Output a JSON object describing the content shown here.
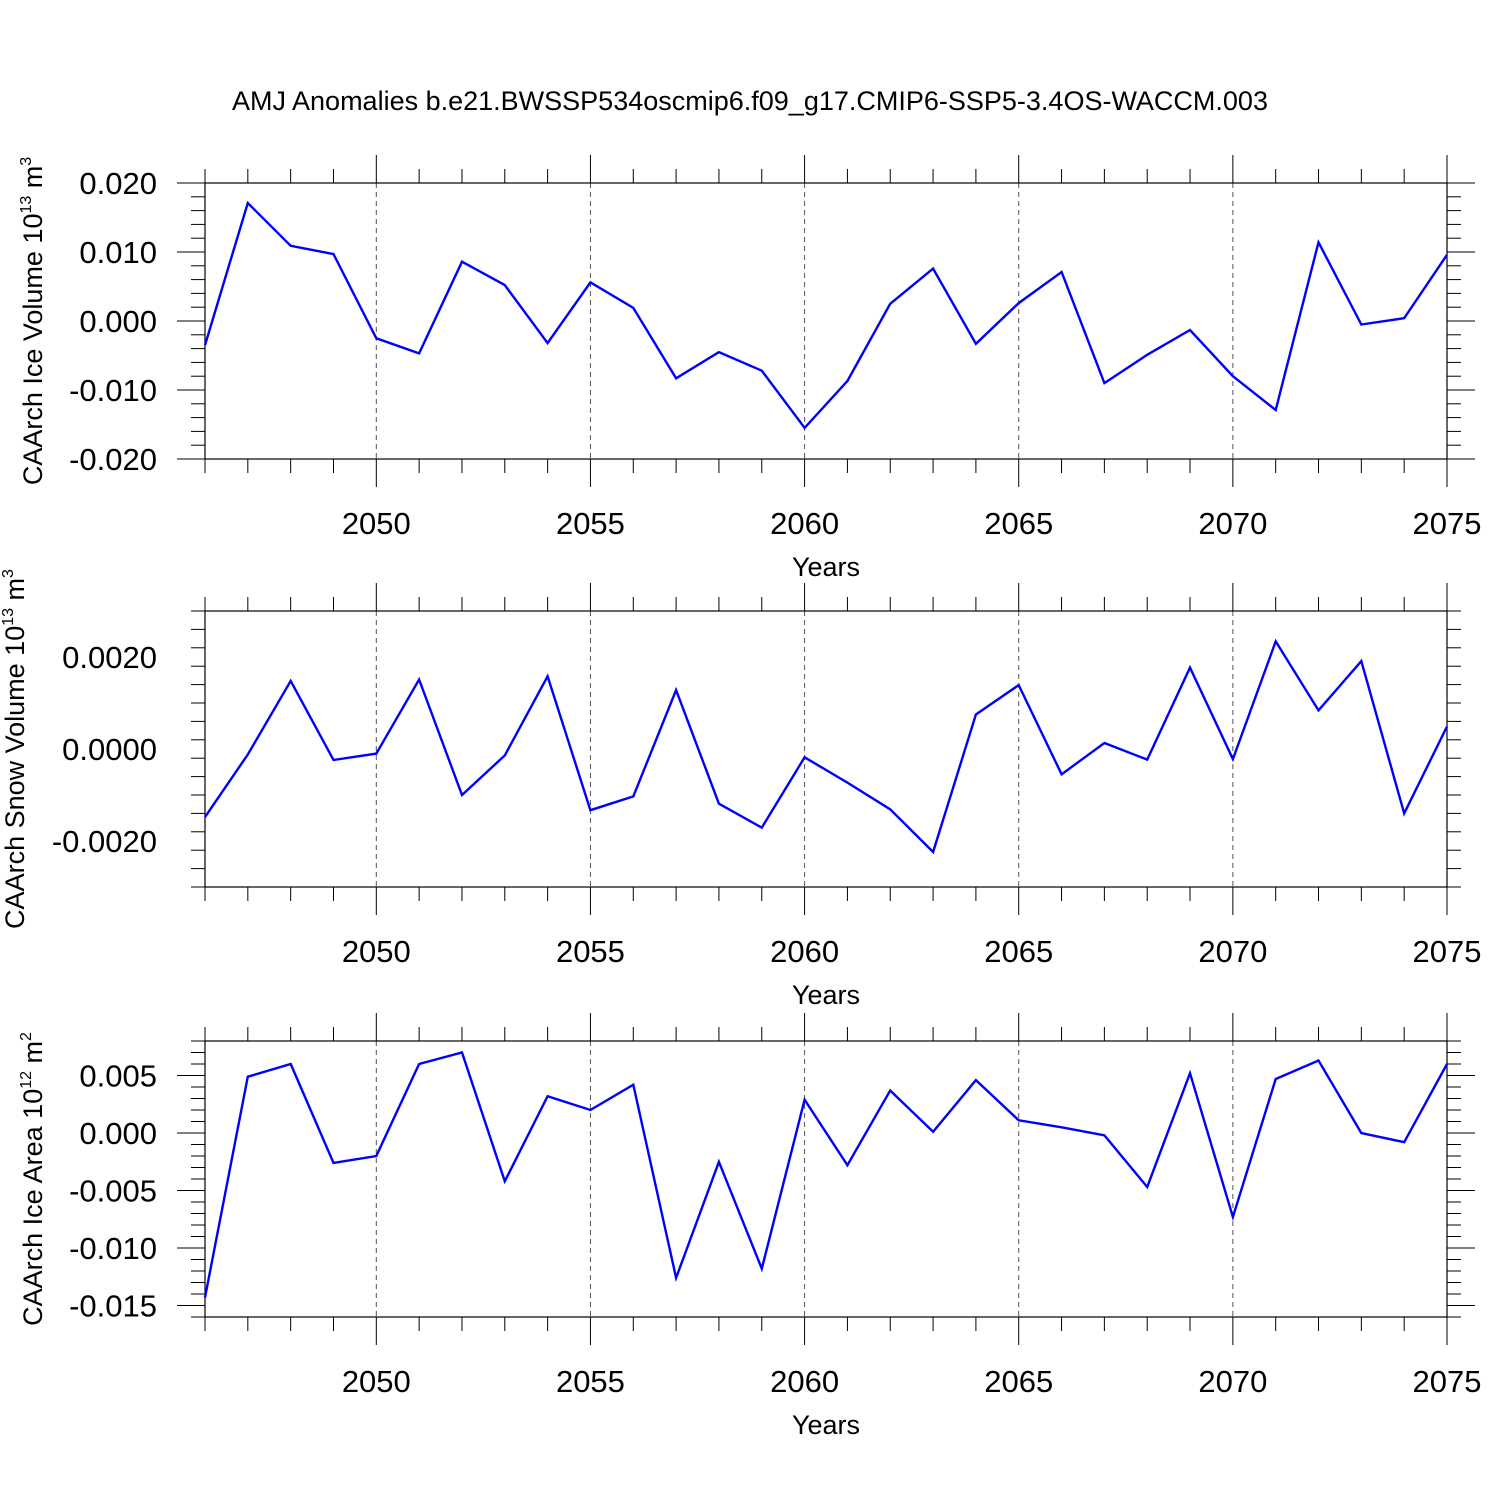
{
  "figure": {
    "title": "AMJ Anomalies b.e21.BWSSP534oscmip6.f09_g17.CMIP6-SSP5-3.4OS-WACCM.003"
  },
  "colors": {
    "line": "#0000ff",
    "axis": "#000000",
    "grid": "#555555"
  },
  "chart_data": [
    {
      "type": "line",
      "ylabel_main": "CAArch Ice Volume 10",
      "ylabel_sup": "13",
      "ylabel_unit": " m",
      "ylabel_unit_sup": "3",
      "xlabel": "Years",
      "xlim": [
        2046,
        2075
      ],
      "ylim": [
        -0.02,
        0.02
      ],
      "x_ticks": [
        2050,
        2055,
        2060,
        2065,
        2070,
        2075
      ],
      "x_tick_labels": [
        "2050",
        "2055",
        "2060",
        "2065",
        "2070",
        "2075"
      ],
      "y_ticks": [
        0.02,
        0.01,
        0.0,
        -0.01,
        -0.02
      ],
      "y_tick_labels": [
        "0.020",
        "0.010",
        "0.000",
        "-0.010",
        "-0.020"
      ],
      "y_minor_step": 0.002,
      "grid": "vertical dashed at major x ticks",
      "x": [
        2046,
        2047,
        2048,
        2049,
        2050,
        2051,
        2052,
        2053,
        2054,
        2055,
        2056,
        2057,
        2058,
        2059,
        2060,
        2061,
        2062,
        2063,
        2064,
        2065,
        2066,
        2067,
        2068,
        2069,
        2070,
        2071,
        2072,
        2073,
        2074,
        2075
      ],
      "series": [
        {
          "values": [
            -0.0035,
            0.0171,
            0.0109,
            0.0097,
            -0.0025,
            -0.0047,
            0.0086,
            0.0052,
            -0.0032,
            0.0056,
            0.0019,
            -0.0083,
            -0.0045,
            -0.0072,
            -0.0155,
            -0.0087,
            0.0025,
            0.0076,
            -0.0033,
            0.0026,
            0.0071,
            -0.009,
            -0.0049,
            -0.0013,
            -0.008,
            -0.0129,
            0.0114,
            -0.0005,
            0.0004,
            0.0096
          ]
        }
      ]
    },
    {
      "type": "line",
      "ylabel_main": "CAArch Snow Volume 10",
      "ylabel_sup": "13",
      "ylabel_unit": " m",
      "ylabel_unit_sup": "3",
      "xlabel": "Years",
      "xlim": [
        2046,
        2075
      ],
      "ylim": [
        -0.003,
        0.003
      ],
      "x_ticks": [
        2050,
        2055,
        2060,
        2065,
        2070,
        2075
      ],
      "x_tick_labels": [
        "2050",
        "2055",
        "2060",
        "2065",
        "2070",
        "2075"
      ],
      "y_ticks": [
        0.002,
        0.0,
        -0.002
      ],
      "y_tick_labels": [
        "0.0020",
        "0.0000",
        "-0.0020"
      ],
      "y_minor_step": 0.0004,
      "grid": "vertical dashed at major x ticks",
      "x": [
        2046,
        2047,
        2048,
        2049,
        2050,
        2051,
        2052,
        2053,
        2054,
        2055,
        2056,
        2057,
        2058,
        2059,
        2060,
        2061,
        2062,
        2063,
        2064,
        2065,
        2066,
        2067,
        2068,
        2069,
        2070,
        2071,
        2072,
        2073,
        2074,
        2075
      ],
      "series": [
        {
          "values": [
            -0.00148,
            -0.00012,
            0.00148,
            -0.00024,
            -0.0001,
            0.00151,
            -0.001,
            -0.00014,
            0.00158,
            -0.00133,
            -0.00103,
            0.00128,
            -0.00119,
            -0.00171,
            -0.00018,
            -0.00073,
            -0.00131,
            -0.00224,
            0.00075,
            0.00139,
            -0.00055,
            0.00013,
            -0.00023,
            0.00177,
            -0.00022,
            0.00234,
            0.00084,
            0.00191,
            -0.0014,
            0.00049
          ]
        }
      ]
    },
    {
      "type": "line",
      "ylabel_main": "CAArch Ice Area 10",
      "ylabel_sup": "12",
      "ylabel_unit": " m",
      "ylabel_unit_sup": "2",
      "xlabel": "Years",
      "xlim": [
        2046,
        2075
      ],
      "ylim": [
        -0.016,
        0.008
      ],
      "x_ticks": [
        2050,
        2055,
        2060,
        2065,
        2070,
        2075
      ],
      "x_tick_labels": [
        "2050",
        "2055",
        "2060",
        "2065",
        "2070",
        "2075"
      ],
      "y_ticks": [
        0.005,
        0.0,
        -0.005,
        -0.01,
        -0.015
      ],
      "y_tick_labels": [
        "0.005",
        "0.000",
        "-0.005",
        "-0.010",
        "-0.015"
      ],
      "y_minor_step": 0.001,
      "grid": "vertical dashed at major x ticks",
      "x": [
        2046,
        2047,
        2048,
        2049,
        2050,
        2051,
        2052,
        2053,
        2054,
        2055,
        2056,
        2057,
        2058,
        2059,
        2060,
        2061,
        2062,
        2063,
        2064,
        2065,
        2066,
        2067,
        2068,
        2069,
        2070,
        2071,
        2072,
        2073,
        2074,
        2075
      ],
      "series": [
        {
          "values": [
            -0.0143,
            0.0049,
            0.006,
            -0.0026,
            -0.002,
            0.006,
            0.007,
            -0.0042,
            0.0032,
            0.002,
            0.0042,
            -0.0126,
            -0.0025,
            -0.0118,
            0.0029,
            -0.0028,
            0.0037,
            0.0001,
            0.0046,
            0.0011,
            0.0005,
            -0.0002,
            -0.0047,
            0.0052,
            -0.0073,
            0.0047,
            0.0063,
            0.0,
            -0.0008,
            0.006
          ]
        }
      ]
    }
  ]
}
